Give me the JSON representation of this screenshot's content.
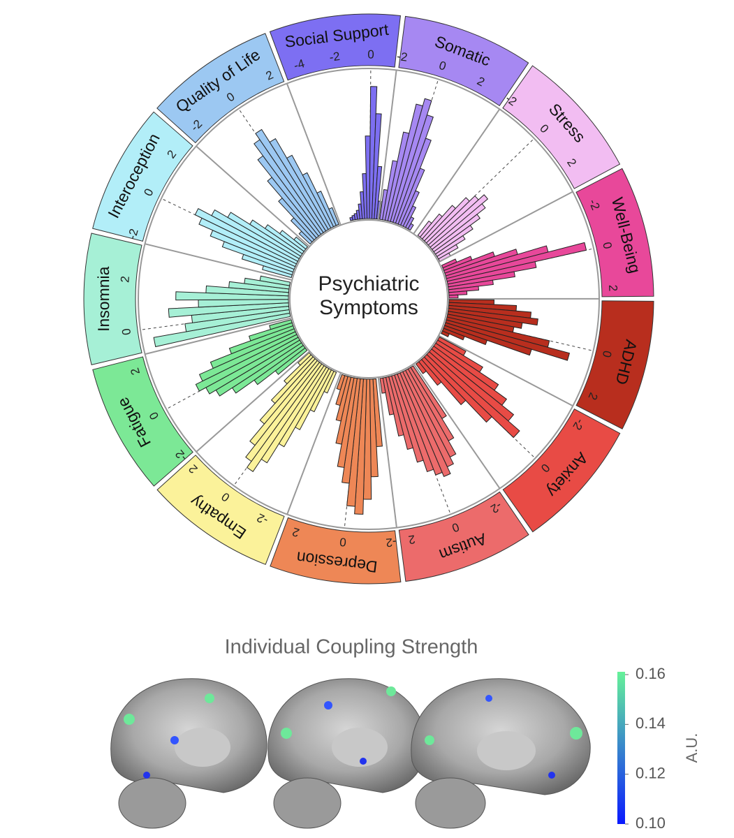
{
  "chart_data": {
    "type": "circular-histogram",
    "center_title": [
      "Psychiatric",
      "Symptoms"
    ],
    "rlim": [
      0,
      100
    ],
    "sectors": [
      {
        "name": "Social Support",
        "color": "#7d6ff2",
        "xlim": [
          -5,
          1.5
        ],
        "xticks": [
          -4,
          -2,
          0
        ],
        "bins": [
          -3.2,
          -2.8,
          -2.4,
          -2.0,
          -1.6,
          -1.2,
          -0.8,
          -0.4,
          0,
          0.4,
          0.8,
          1.2,
          1.6
        ],
        "counts": [
          2,
          3,
          4,
          6,
          10,
          18,
          30,
          55,
          88,
          70,
          35,
          12
        ]
      },
      {
        "name": "Somatic",
        "color": "#a688f2",
        "xlim": [
          -2.2,
          3.5
        ],
        "xticks": [
          -2,
          0,
          2
        ],
        "bins": [
          -2.0,
          -1.6,
          -1.2,
          -0.8,
          -0.4,
          0,
          0.4,
          0.8,
          1.2,
          1.6,
          2.0,
          2.4,
          2.8
        ],
        "counts": [
          20,
          40,
          60,
          80,
          85,
          75,
          60,
          40,
          25,
          15,
          8,
          4
        ]
      },
      {
        "name": "Stress",
        "color": "#f2bdf2",
        "xlim": [
          -2.2,
          3.2
        ],
        "xticks": [
          -2,
          0,
          2
        ],
        "bins": [
          -1.6,
          -1.2,
          -0.8,
          -0.4,
          0,
          0.4,
          0.8,
          1.2,
          1.6,
          2.0,
          2.4,
          2.8,
          3.2
        ],
        "counts": [
          12,
          20,
          30,
          40,
          45,
          50,
          45,
          38,
          30,
          22,
          15,
          8
        ]
      },
      {
        "name": "Well-Being",
        "color": "#e8489a",
        "xlim": [
          -3,
          2.5
        ],
        "xticks": [
          -2,
          0,
          2
        ],
        "bins": [
          -2.4,
          -2.0,
          -1.6,
          -1.2,
          -0.8,
          -0.4,
          0,
          0.4,
          0.8,
          1.2,
          1.6,
          2.0,
          2.4
        ],
        "counts": [
          10,
          20,
          35,
          50,
          70,
          95,
          60,
          45,
          30,
          20,
          12,
          6
        ]
      },
      {
        "name": "ADHD",
        "color": "#b82e1e",
        "xlim": [
          -2.5,
          2.8
        ],
        "xticks": [
          0,
          2
        ],
        "bins": [
          -2.4,
          -2.0,
          -1.6,
          -1.2,
          -0.8,
          -0.4,
          0,
          0.4,
          0.8,
          1.2,
          1.6,
          2.0,
          2.4
        ],
        "counts": [
          30,
          45,
          55,
          60,
          50,
          45,
          70,
          85,
          60,
          30,
          15,
          5
        ]
      },
      {
        "name": "Anxiety",
        "color": "#e84b45",
        "xlim": [
          -2.5,
          1.8
        ],
        "xticks": [
          -2,
          0
        ],
        "bins": [
          -2.4,
          -2.0,
          -1.6,
          -1.2,
          -0.8,
          -0.4,
          0,
          0.4,
          0.8,
          1.2,
          1.6
        ],
        "counts": [
          20,
          35,
          50,
          60,
          70,
          80,
          60,
          40,
          20,
          8
        ]
      },
      {
        "name": "Autism",
        "color": "#ec6b6b",
        "xlim": [
          -2.6,
          2.6
        ],
        "xticks": [
          -2,
          0,
          2
        ],
        "bins": [
          -2.4,
          -2.0,
          -1.6,
          -1.2,
          -0.8,
          -0.4,
          0,
          0.4,
          0.8,
          1.2,
          1.6,
          2.0,
          2.4
        ],
        "counts": [
          40,
          55,
          65,
          70,
          75,
          72,
          68,
          60,
          50,
          40,
          25,
          10
        ]
      },
      {
        "name": "Depression",
        "color": "#ee8756",
        "xlim": [
          -2.3,
          2.6
        ],
        "xticks": [
          -2,
          0,
          2
        ],
        "bins": [
          -2.0,
          -1.6,
          -1.2,
          -0.8,
          -0.4,
          0,
          0.4,
          0.8,
          1.2,
          1.6,
          2.0,
          2.4
        ],
        "counts": [
          45,
          65,
          80,
          90,
          85,
          70,
          60,
          45,
          30,
          20,
          10
        ]
      },
      {
        "name": "Empathy",
        "color": "#fbf29a",
        "xlim": [
          -3,
          2.5
        ],
        "xticks": [
          -2,
          0,
          2
        ],
        "bins": [
          -2.4,
          -2.0,
          -1.6,
          -1.2,
          -0.8,
          -0.4,
          0,
          0.4,
          0.8,
          1.2,
          1.6,
          2.0,
          2.4
        ],
        "counts": [
          15,
          30,
          45,
          60,
          75,
          85,
          80,
          70,
          55,
          40,
          25,
          10
        ]
      },
      {
        "name": "Fatigue",
        "color": "#7ce896",
        "xlim": [
          -2.3,
          2.6
        ],
        "xticks": [
          -2,
          0,
          2
        ],
        "bins": [
          -2.0,
          -1.6,
          -1.2,
          -0.8,
          -0.4,
          0,
          0.4,
          0.8,
          1.2,
          1.6,
          2.0,
          2.4
        ],
        "counts": [
          25,
          40,
          55,
          65,
          70,
          75,
          70,
          60,
          45,
          30,
          15
        ]
      },
      {
        "name": "Insomnia",
        "color": "#a6f0d6",
        "xlim": [
          -1,
          3.5
        ],
        "xticks": [
          0,
          2
        ],
        "bins": [
          -0.8,
          -0.4,
          0,
          0.4,
          0.8,
          1.2,
          1.6,
          2.0,
          2.4,
          2.8,
          3.2
        ],
        "counts": [
          92,
          70,
          65,
          80,
          60,
          75,
          55,
          40,
          30,
          20
        ]
      },
      {
        "name": "Interoception",
        "color": "#b2eef8",
        "xlim": [
          -2.3,
          3
        ],
        "xticks": [
          -2,
          0,
          2
        ],
        "bins": [
          -2.0,
          -1.6,
          -1.2,
          -0.8,
          -0.4,
          0,
          0.4,
          0.8,
          1.2,
          1.6,
          2.0,
          2.4,
          2.8
        ],
        "counts": [
          20,
          35,
          50,
          60,
          70,
          75,
          65,
          55,
          40,
          30,
          20,
          10
        ]
      },
      {
        "name": "Quality of Life",
        "color": "#9cc8f2",
        "xlim": [
          -2.7,
          2.6
        ],
        "xticks": [
          -2,
          0,
          2
        ],
        "bins": [
          -2.4,
          -2.0,
          -1.6,
          -1.2,
          -0.8,
          -0.4,
          0,
          0.4,
          0.8,
          1.2,
          1.6,
          2.0,
          2.4
        ],
        "counts": [
          10,
          20,
          35,
          50,
          65,
          75,
          80,
          70,
          55,
          40,
          25,
          12
        ]
      }
    ]
  },
  "brain_panel": {
    "title": "Individual Coupling Strength",
    "colorbar": {
      "label": "A.U.",
      "lim": [
        0.1,
        0.16
      ],
      "colors": [
        "#0a1aff",
        "#66f299"
      ],
      "ticks": [
        {
          "value": 0.1,
          "label": "0.10"
        },
        0.12,
        0.14,
        0.16
      ]
    }
  }
}
